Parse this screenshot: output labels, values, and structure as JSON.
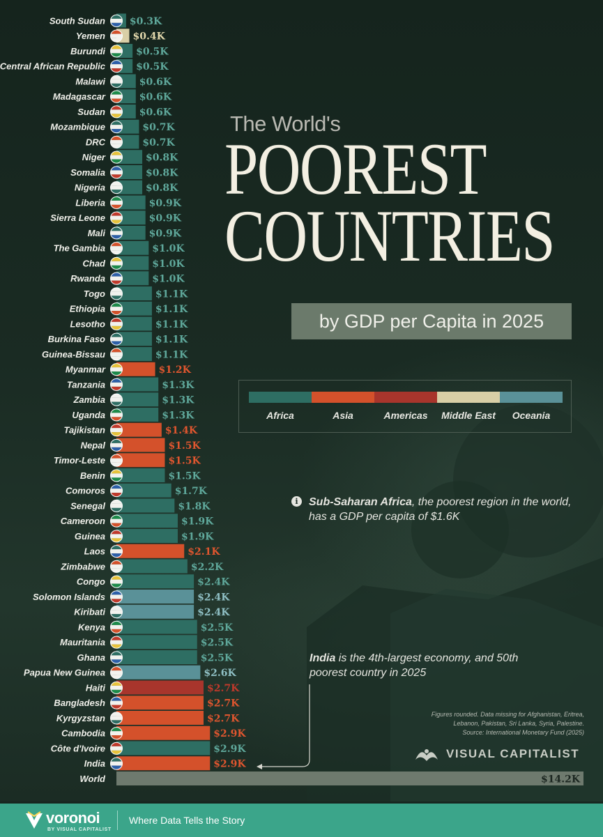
{
  "title": {
    "pre": "The World's",
    "line1": "POOREST",
    "line2": "COUNTRIES",
    "subtitle": "by GDP per Capita in 2025"
  },
  "colors": {
    "background": "#172720",
    "Africa": "#2e6e63",
    "Asia": "#d4512b",
    "Americas": "#a8352c",
    "Middle East": "#d9cfa6",
    "Oceania": "#5a9198",
    "World": "#6e7a6e"
  },
  "legend": [
    "Africa",
    "Asia",
    "Americas",
    "Middle East",
    "Oceania"
  ],
  "notes": {
    "africa_bold": "Sub-Saharan Africa",
    "africa_rest": ", the poorest region in the world, has a GDP per capita of $1.6K",
    "india_bold": "India",
    "india_rest": " is the 4th-largest economy, and 50th poorest country in 2025"
  },
  "footnote": {
    "line1": "Figures rounded. Data missing for Afghanistan, Eritrea,",
    "line2": "Lebanon, Pakistan, Sri Lanka, Syria, Palestine.",
    "line3": "Source: International Monetary Fund (2025)"
  },
  "brand": "VISUAL CAPITALIST",
  "footer": {
    "logo": "voronoi",
    "by": "BY VISUAL CAPITALIST",
    "tagline": "Where Data Tells the Story"
  },
  "chart_data": {
    "type": "bar",
    "orientation": "horizontal",
    "unit": "USD thousands",
    "categories": [
      "South Sudan",
      "Yemen",
      "Burundi",
      "Central African Republic",
      "Malawi",
      "Madagascar",
      "Sudan",
      "Mozambique",
      "DRC",
      "Niger",
      "Somalia",
      "Nigeria",
      "Liberia",
      "Sierra Leone",
      "Mali",
      "The Gambia",
      "Chad",
      "Rwanda",
      "Togo",
      "Ethiopia",
      "Lesotho",
      "Burkina Faso",
      "Guinea-Bissau",
      "Myanmar",
      "Tanzania",
      "Zambia",
      "Uganda",
      "Tajikistan",
      "Nepal",
      "Timor-Leste",
      "Benin",
      "Comoros",
      "Senegal",
      "Cameroon",
      "Guinea",
      "Laos",
      "Zimbabwe",
      "Congo",
      "Solomon Islands",
      "Kiribati",
      "Kenya",
      "Mauritania",
      "Ghana",
      "Papua New Guinea",
      "Haiti",
      "Bangladesh",
      "Kyrgyzstan",
      "Cambodia",
      "Côte d'Ivoire",
      "India",
      "World"
    ],
    "values": [
      0.3,
      0.4,
      0.5,
      0.5,
      0.6,
      0.6,
      0.6,
      0.7,
      0.7,
      0.8,
      0.8,
      0.8,
      0.9,
      0.9,
      0.9,
      1.0,
      1.0,
      1.0,
      1.1,
      1.1,
      1.1,
      1.1,
      1.1,
      1.2,
      1.3,
      1.3,
      1.3,
      1.4,
      1.5,
      1.5,
      1.5,
      1.7,
      1.8,
      1.9,
      1.9,
      2.1,
      2.2,
      2.4,
      2.4,
      2.4,
      2.5,
      2.5,
      2.5,
      2.6,
      2.7,
      2.7,
      2.7,
      2.9,
      2.9,
      2.9,
      14.2
    ],
    "labels": [
      "$0.3K",
      "$0.4K",
      "$0.5K",
      "$0.5K",
      "$0.6K",
      "$0.6K",
      "$0.6K",
      "$0.7K",
      "$0.7K",
      "$0.8K",
      "$0.8K",
      "$0.8K",
      "$0.9K",
      "$0.9K",
      "$0.9K",
      "$1.0K",
      "$1.0K",
      "$1.0K",
      "$1.1K",
      "$1.1K",
      "$1.1K",
      "$1.1K",
      "$1.1K",
      "$1.2K",
      "$1.3K",
      "$1.3K",
      "$1.3K",
      "$1.4K",
      "$1.5K",
      "$1.5K",
      "$1.5K",
      "$1.7K",
      "$1.8K",
      "$1.9K",
      "$1.9K",
      "$2.1K",
      "$2.2K",
      "$2.4K",
      "$2.4K",
      "$2.4K",
      "$2.5K",
      "$2.5K",
      "$2.5K",
      "$2.6K",
      "$2.7K",
      "$2.7K",
      "$2.7K",
      "$2.9K",
      "$2.9K",
      "$2.9K",
      "$14.2K"
    ],
    "regions": [
      "Africa",
      "Middle East",
      "Africa",
      "Africa",
      "Africa",
      "Africa",
      "Africa",
      "Africa",
      "Africa",
      "Africa",
      "Africa",
      "Africa",
      "Africa",
      "Africa",
      "Africa",
      "Africa",
      "Africa",
      "Africa",
      "Africa",
      "Africa",
      "Africa",
      "Africa",
      "Africa",
      "Asia",
      "Africa",
      "Africa",
      "Africa",
      "Asia",
      "Asia",
      "Asia",
      "Africa",
      "Africa",
      "Africa",
      "Africa",
      "Africa",
      "Asia",
      "Africa",
      "Africa",
      "Oceania",
      "Oceania",
      "Africa",
      "Africa",
      "Africa",
      "Oceania",
      "Americas",
      "Asia",
      "Asia",
      "Asia",
      "Africa",
      "Asia",
      "World"
    ],
    "xlim": [
      0,
      14.2
    ],
    "grid": false,
    "legend_position": "right"
  }
}
